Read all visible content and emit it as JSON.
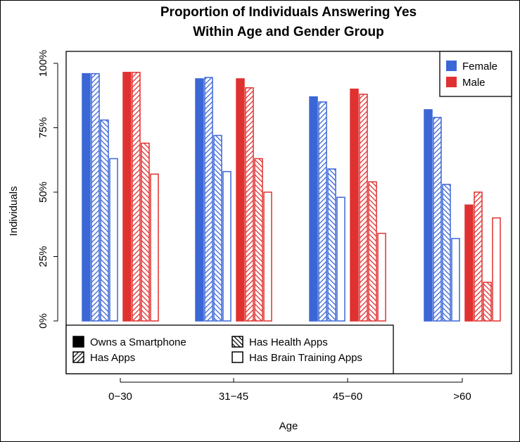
{
  "chart_data": {
    "type": "bar",
    "title_line1": "Proportion of Individuals Answering Yes",
    "title_line2": "Within Age and Gender Group",
    "xlabel": "Age",
    "ylabel": "Individuals",
    "ylim": [
      0,
      1
    ],
    "yticks": [
      0,
      0.25,
      0.5,
      0.75,
      1.0
    ],
    "ytick_labels": [
      "0%",
      "25%",
      "50%",
      "75%",
      "100%"
    ],
    "categories": [
      "0−30",
      "31−45",
      "45−60",
      ">60"
    ],
    "genders": [
      {
        "name": "Female",
        "color": "#3b66d6"
      },
      {
        "name": "Male",
        "color": "#e03131"
      }
    ],
    "measures": [
      {
        "name": "Owns a Smartphone",
        "pattern": "solid"
      },
      {
        "name": "Has Apps",
        "pattern": "hatch-right"
      },
      {
        "name": "Has Health Apps",
        "pattern": "hatch-left"
      },
      {
        "name": "Has Brain Training Apps",
        "pattern": "empty"
      }
    ],
    "values": {
      "Female": {
        "Owns a Smartphone": [
          0.96,
          0.94,
          0.87,
          0.82
        ],
        "Has Apps": [
          0.96,
          0.945,
          0.85,
          0.79
        ],
        "Has Health Apps": [
          0.78,
          0.72,
          0.59,
          0.53
        ],
        "Has Brain Training Apps": [
          0.63,
          0.58,
          0.48,
          0.32
        ]
      },
      "Male": {
        "Owns a Smartphone": [
          0.965,
          0.94,
          0.9,
          0.45
        ],
        "Has Apps": [
          0.965,
          0.905,
          0.88,
          0.5
        ],
        "Has Health Apps": [
          0.69,
          0.63,
          0.54,
          0.15
        ],
        "Has Brain Training Apps": [
          0.57,
          0.5,
          0.34,
          0.4
        ]
      }
    },
    "legend_gender_position": "top-right",
    "legend_measure_position": "bottom-left",
    "grid": false
  }
}
